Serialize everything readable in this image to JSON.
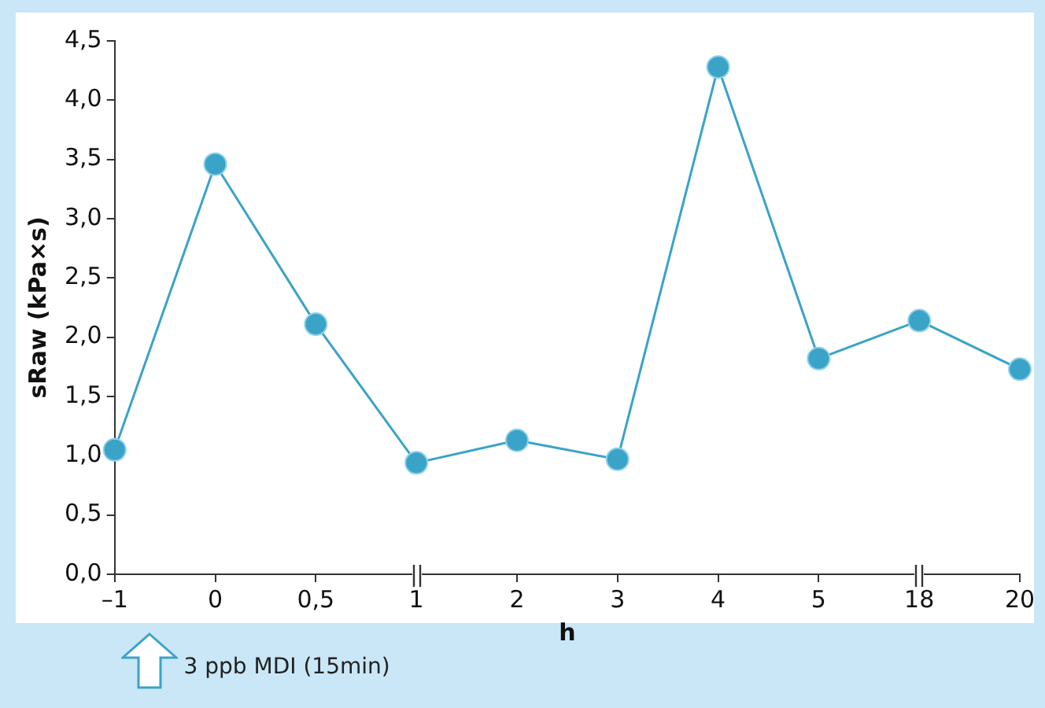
{
  "chart_data": {
    "type": "line",
    "xlabel": "h",
    "ylabel": "sRaw (kPa×s)",
    "categories": [
      "–1",
      "0",
      "0,5",
      "1",
      "2",
      "3",
      "4",
      "5",
      "18",
      "20"
    ],
    "values": [
      1.05,
      3.46,
      2.11,
      0.94,
      1.13,
      0.97,
      4.28,
      1.82,
      2.14,
      1.73
    ],
    "color": "#3aa3c8",
    "marker": "circle",
    "line_style": "solid",
    "grid": false,
    "legend": false,
    "ylim": [
      0,
      4.5
    ],
    "yticks": [
      {
        "value": 0,
        "label": "0,0"
      },
      {
        "value": 0.5,
        "label": "0,5"
      },
      {
        "value": 1,
        "label": "1,0"
      },
      {
        "value": 1.5,
        "label": "1,5"
      },
      {
        "value": 2,
        "label": "2,0"
      },
      {
        "value": 2.5,
        "label": "2,5"
      },
      {
        "value": 3,
        "label": "3,0"
      },
      {
        "value": 3.5,
        "label": "3,5"
      },
      {
        "value": 4,
        "label": "4,0"
      },
      {
        "value": 4.5,
        "label": "4,5"
      }
    ],
    "annotations": [
      "3 ppb MDI (15min)"
    ]
  }
}
